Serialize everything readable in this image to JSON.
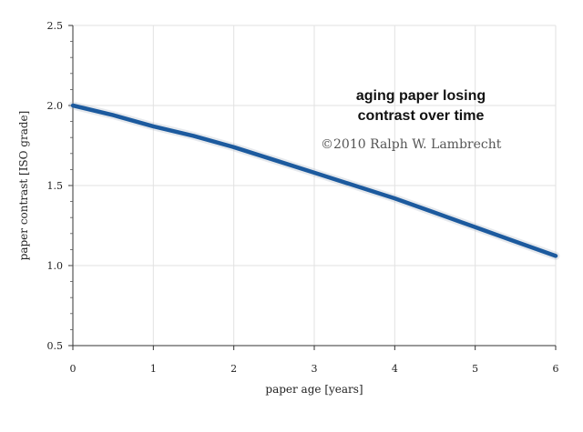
{
  "chart_data": {
    "type": "line",
    "title": "",
    "xlabel": "paper age  [years]",
    "ylabel": "paper contrast  [ISO grade]",
    "xlim": [
      0,
      6
    ],
    "ylim": [
      0.5,
      2.5
    ],
    "x_ticks": [
      "0",
      "1",
      "2",
      "3",
      "4",
      "5",
      "6"
    ],
    "y_ticks": [
      "0.5",
      "1.0",
      "1.5",
      "2.0",
      "2.5"
    ],
    "grid": true,
    "series": [
      {
        "color": "#1c5a9e",
        "x": [
          0,
          0.5,
          1,
          1.5,
          2,
          2.5,
          3,
          3.5,
          4,
          4.5,
          5,
          5.5,
          6
        ],
        "y": [
          2.0,
          1.94,
          1.87,
          1.81,
          1.74,
          1.66,
          1.58,
          1.5,
          1.42,
          1.33,
          1.24,
          1.15,
          1.06
        ]
      }
    ],
    "annotations": [
      "aging paper losing",
      "contrast over time"
    ],
    "copyright": "©2010   Ralph W. Lambrecht"
  }
}
